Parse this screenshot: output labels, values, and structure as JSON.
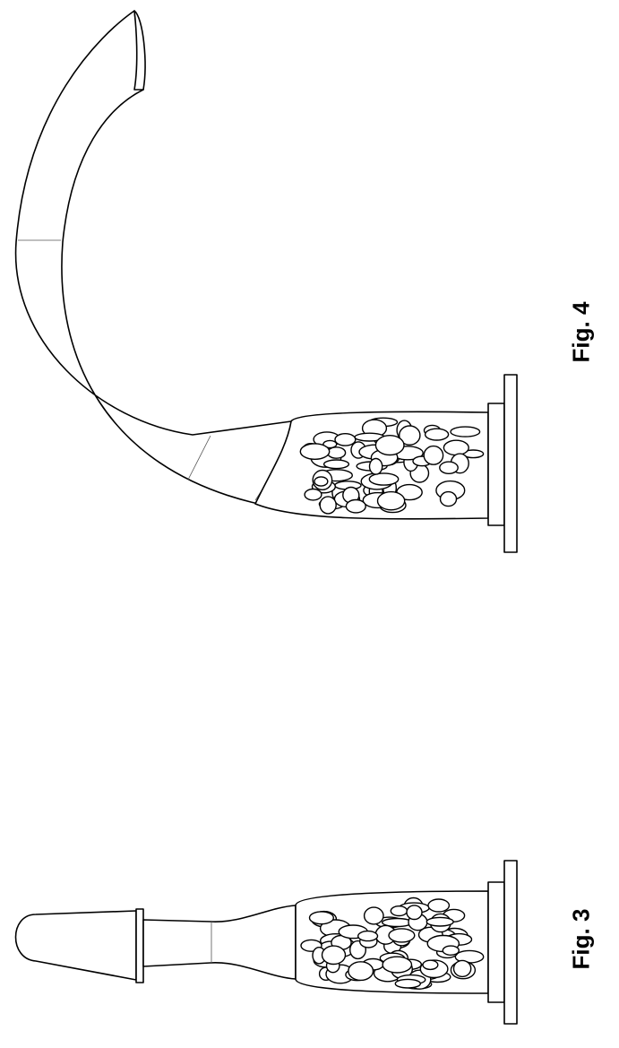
{
  "figures": [
    {
      "id": "fig3",
      "label": "Fig. 3"
    },
    {
      "id": "fig4",
      "label": "Fig. 4"
    }
  ]
}
